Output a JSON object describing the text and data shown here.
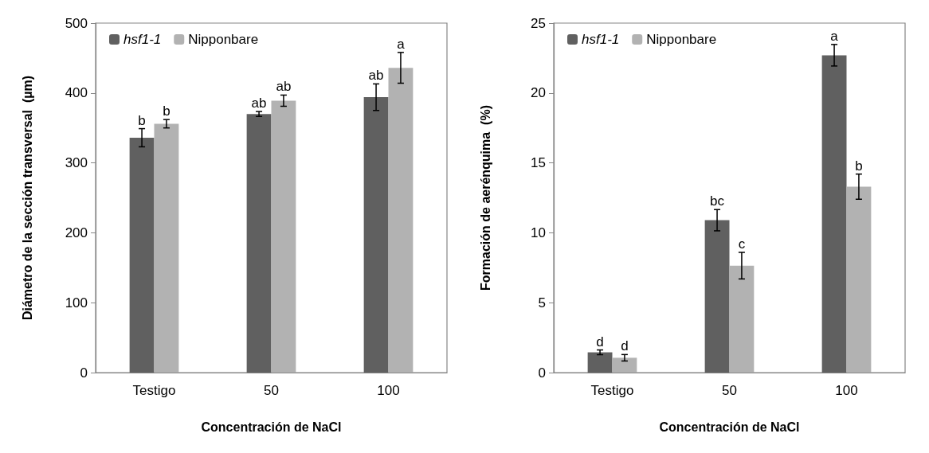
{
  "chart_data": [
    {
      "type": "bar",
      "xlabel": "Concentración de NaCl",
      "ylabel": "Diámetro de la sección transversal  (µm)",
      "categories": [
        "Testigo",
        "50",
        "100"
      ],
      "series": [
        {
          "name": "hsf1-1",
          "color": "#606060",
          "values": [
            336,
            370,
            394
          ],
          "errors": [
            13,
            3.5,
            19
          ],
          "value_labels": [
            "b",
            "ab",
            "ab"
          ]
        },
        {
          "name": "Nipponbare",
          "color": "#b2b2b2",
          "values": [
            356,
            389,
            436
          ],
          "errors": [
            6,
            8,
            22
          ],
          "value_labels": [
            "b",
            "ab",
            "a"
          ]
        }
      ],
      "ylim": [
        0,
        500
      ],
      "yticks": [
        0,
        100,
        200,
        300,
        400,
        500
      ],
      "grid": false,
      "legend": "top left"
    },
    {
      "type": "bar",
      "xlabel": "Concentración de NaCl",
      "ylabel": "Formación de aerénquima  (%)",
      "categories": [
        "Testigo",
        "50",
        "100"
      ],
      "series": [
        {
          "name": "hsf1-1",
          "color": "#606060",
          "values": [
            1.45,
            10.9,
            22.7
          ],
          "errors": [
            0.17,
            0.76,
            0.77
          ],
          "value_labels": [
            "d",
            "bc",
            "a"
          ]
        },
        {
          "name": "Nipponbare",
          "color": "#b2b2b2",
          "values": [
            1.06,
            7.65,
            13.3
          ],
          "errors": [
            0.23,
            0.95,
            0.9
          ],
          "value_labels": [
            "d",
            "c",
            "b"
          ]
        }
      ],
      "ylim": [
        0,
        25
      ],
      "yticks": [
        0,
        5,
        10,
        15,
        20,
        25
      ],
      "grid": false,
      "legend": "top left"
    }
  ]
}
